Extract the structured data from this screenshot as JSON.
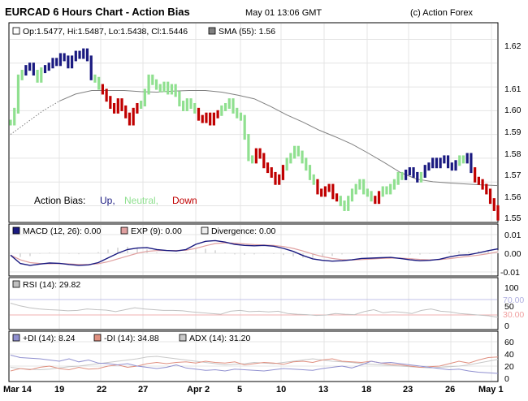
{
  "header": {
    "title": "EURCAD 6 Hours Chart - Action Bias",
    "datetime": "May 01 13:06 GMT",
    "copyright": "(c) Action Forex"
  },
  "colors": {
    "up": "#1a1a80",
    "neutral": "#90e090",
    "down": "#c00000",
    "sma": "#808080",
    "macd": "#1a1a80",
    "exp": "#e0a0a0",
    "divergence": "#dddddd",
    "rsi": "#c0c0c0",
    "rsi_ref": "#c0c0e8",
    "plus_di": "#9090d0",
    "minus_di": "#e09080",
    "adx": "#c8c8c8",
    "grid": "#e4e4e4",
    "frame": "#000000"
  },
  "x_axis": {
    "labels": [
      "Mar 14",
      "19",
      "22",
      "27",
      "Apr 2",
      "5",
      "10",
      "13",
      "18",
      "23",
      "26",
      "May 1"
    ]
  },
  "price_panel": {
    "legend_ohlc": "Op:1.5477, Hi:1.5487, Lo:1.5438, Cl:1.5446",
    "legend_sma": "SMA (55): 1.56",
    "bias_label": "Action Bias:",
    "bias_up": "Up,",
    "bias_neutral": "Neutral,",
    "bias_down": "Down",
    "y_ticks": [
      "1.62",
      "1.61",
      "1.60",
      "1.59",
      "1.58",
      "1.57",
      "1.56",
      "1.55"
    ]
  },
  "macd_panel": {
    "legend_macd": "MACD (12, 26): 0.00",
    "legend_exp": "EXP (9): 0.00",
    "legend_div": "Divergence: 0.00",
    "y_ticks": [
      "0.01",
      "0.00",
      "-0.01"
    ]
  },
  "rsi_panel": {
    "legend": "RSI (14): 29.82",
    "y_ticks": [
      "100",
      "50",
      "0"
    ],
    "ref_high": "70.00",
    "ref_low": "30.00"
  },
  "dmi_panel": {
    "legend_plus": "+DI (14): 8.24",
    "legend_minus": "-DI (14): 34.88",
    "legend_adx": "ADX (14): 31.20",
    "y_ticks": [
      "60",
      "40",
      "20",
      "0"
    ]
  },
  "chart_data": {
    "type": "ohlc",
    "title": "EURCAD 6 Hours Chart - Action Bias",
    "x_labels": [
      "Mar 14",
      "19",
      "22",
      "27",
      "Apr 2",
      "5",
      "10",
      "13",
      "18",
      "23",
      "26",
      "May 1"
    ],
    "price_ylim": [
      1.543,
      1.627
    ],
    "bias_order": [
      "neutral",
      "neutral",
      "neutral",
      "neutral",
      "up",
      "up",
      "up",
      "neutral",
      "neutral",
      "up",
      "up",
      "up",
      "up",
      "up",
      "up",
      "up",
      "up",
      "up",
      "up",
      "up",
      "up",
      "up",
      "neutral",
      "neutral",
      "down",
      "down",
      "down",
      "down",
      "down",
      "down",
      "down",
      "down",
      "down",
      "down",
      "neutral",
      "neutral",
      "neutral",
      "neutral",
      "neutral",
      "neutral",
      "neutral",
      "neutral",
      "neutral",
      "neutral",
      "neutral",
      "neutral",
      "neutral",
      "neutral",
      "neutral",
      "down",
      "down",
      "down",
      "down",
      "down",
      "down",
      "neutral",
      "neutral",
      "neutral",
      "neutral",
      "neutral",
      "neutral",
      "neutral",
      "neutral",
      "neutral",
      "down",
      "down",
      "down",
      "down",
      "down",
      "down",
      "down",
      "down",
      "neutral",
      "neutral",
      "neutral",
      "neutral",
      "neutral",
      "neutral",
      "neutral",
      "neutral",
      "down",
      "down",
      "down",
      "down",
      "down",
      "down",
      "neutral",
      "neutral",
      "neutral",
      "neutral",
      "neutral",
      "neutral",
      "neutral",
      "neutral",
      "neutral",
      "down",
      "down",
      "neutral",
      "neutral",
      "neutral",
      "neutral",
      "neutral",
      "neutral",
      "up",
      "up",
      "up",
      "up",
      "neutral",
      "up",
      "up",
      "up",
      "up",
      "up",
      "up",
      "up",
      "up",
      "up",
      "neutral",
      "neutral",
      "up",
      "up",
      "down",
      "down",
      "down",
      "down",
      "down",
      "down",
      "down",
      "down"
    ],
    "close_series": [
      1.585,
      1.59,
      1.604,
      1.606,
      1.608,
      1.609,
      1.606,
      1.603,
      1.607,
      1.608,
      1.609,
      1.611,
      1.61,
      1.613,
      1.612,
      1.609,
      1.612,
      1.614,
      1.613,
      1.615,
      1.612,
      1.604,
      1.603,
      1.6,
      1.598,
      1.595,
      1.592,
      1.59,
      1.594,
      1.591,
      1.588,
      1.585,
      1.59,
      1.592,
      1.593,
      1.598,
      1.604,
      1.602,
      1.6,
      1.599,
      1.601,
      1.598,
      1.6,
      1.597,
      1.593,
      1.591,
      1.594,
      1.592,
      1.59,
      1.587,
      1.586,
      1.588,
      1.585,
      1.588,
      1.589,
      1.591,
      1.592,
      1.594,
      1.59,
      1.588,
      1.587,
      1.579,
      1.57,
      1.569,
      1.573,
      1.571,
      1.567,
      1.565,
      1.563,
      1.56,
      1.562,
      1.566,
      1.569,
      1.571,
      1.574,
      1.572,
      1.569,
      1.566,
      1.562,
      1.56,
      1.556,
      1.555,
      1.557,
      1.558,
      1.554,
      1.553,
      1.551,
      1.549,
      1.553,
      1.556,
      1.558,
      1.56,
      1.556,
      1.555,
      1.553,
      1.552,
      1.555,
      1.557,
      1.556,
      1.558,
      1.56,
      1.563,
      1.562,
      1.564,
      1.565,
      1.563,
      1.561,
      1.563,
      1.566,
      1.567,
      1.569,
      1.567,
      1.569,
      1.57,
      1.567,
      1.566,
      1.568,
      1.57,
      1.569,
      1.571,
      1.565,
      1.561,
      1.56,
      1.558,
      1.556,
      1.552,
      1.549,
      1.545
    ],
    "sma_series": [
      1.58,
      1.585,
      1.59,
      1.594,
      1.597,
      1.5985,
      1.5985,
      1.5985,
      1.598,
      1.5978,
      1.5982,
      1.5985,
      1.5985,
      1.5978,
      1.5965,
      1.595,
      1.5918,
      1.5882,
      1.5852,
      1.5818,
      1.579,
      1.576,
      1.5722,
      1.5682,
      1.564,
      1.5612,
      1.5601,
      1.5596,
      1.5592,
      1.5588,
      1.5585
    ],
    "macd": [
      -0.001,
      -0.0055,
      -0.0065,
      -0.0058,
      -0.0052,
      -0.0054,
      -0.006,
      -0.0065,
      -0.0062,
      -0.005,
      -0.0025,
      0.0,
      0.002,
      0.0028,
      0.003,
      0.002,
      0.0015,
      0.0012,
      0.002,
      0.0048,
      0.0064,
      0.0068,
      0.006,
      0.0048,
      0.0042,
      0.004,
      0.0042,
      0.0038,
      0.0026,
      0.001,
      -0.0012,
      -0.003,
      -0.0038,
      -0.0042,
      -0.004,
      -0.0035,
      -0.0028,
      -0.0026,
      -0.0024,
      -0.0022,
      -0.0028,
      -0.0035,
      -0.004,
      -0.0038,
      -0.0032,
      -0.002,
      -0.001,
      -0.0008,
      0.0002,
      0.0014,
      0.0024
    ],
    "exp": [
      -0.001,
      -0.0035,
      -0.005,
      -0.0055,
      -0.0056,
      -0.0055,
      -0.0057,
      -0.006,
      -0.006,
      -0.0056,
      -0.0045,
      -0.003,
      -0.0015,
      0.0,
      0.001,
      0.0015,
      0.0015,
      0.0015,
      0.0016,
      0.0026,
      0.004,
      0.0052,
      0.0056,
      0.0054,
      0.005,
      0.0046,
      0.0044,
      0.0042,
      0.0036,
      0.0026,
      0.0012,
      -0.0004,
      -0.0018,
      -0.0028,
      -0.0034,
      -0.0036,
      -0.0034,
      -0.0031,
      -0.0028,
      -0.0026,
      -0.0026,
      -0.0029,
      -0.0033,
      -0.0035,
      -0.0034,
      -0.0029,
      -0.0022,
      -0.0016,
      -0.001,
      -0.0002,
      0.0008
    ],
    "rsi": [
      67,
      60,
      55,
      52,
      50,
      49,
      47,
      48,
      52,
      50,
      49,
      45,
      50,
      55,
      52,
      50,
      48,
      48,
      47,
      44,
      42,
      40,
      38,
      46,
      48,
      45,
      46,
      44,
      46,
      40,
      38,
      37,
      35,
      36,
      40,
      38,
      37,
      45,
      50,
      42,
      45,
      43,
      40,
      48,
      52,
      46,
      44,
      40,
      38,
      36,
      34,
      30
    ],
    "plus_di": [
      38,
      34,
      33,
      32,
      30,
      28,
      32,
      27,
      30,
      25,
      24,
      22,
      24,
      20,
      18,
      16,
      18,
      22,
      17,
      15,
      13,
      14,
      12,
      15,
      14,
      13,
      12,
      14,
      16,
      15,
      14,
      13,
      16,
      18,
      20,
      17,
      22,
      28,
      25,
      26,
      24,
      22,
      20,
      18,
      16,
      14,
      15,
      12,
      10,
      9,
      8
    ],
    "minus_di": [
      12,
      16,
      14,
      18,
      20,
      16,
      14,
      18,
      15,
      16,
      20,
      22,
      18,
      20,
      24,
      26,
      24,
      26,
      27,
      25,
      28,
      26,
      25,
      27,
      22,
      24,
      26,
      25,
      23,
      27,
      28,
      26,
      30,
      32,
      28,
      27,
      26,
      28,
      25,
      23,
      22,
      20,
      18,
      19,
      20,
      24,
      28,
      25,
      30,
      34,
      35
    ],
    "adx": [
      18,
      16,
      15,
      14,
      15,
      17,
      19,
      20,
      22,
      24,
      26,
      28,
      30,
      32,
      35,
      36,
      34,
      32,
      30,
      28,
      26,
      24,
      22,
      23,
      24,
      26,
      25,
      24,
      26,
      28,
      30,
      32,
      30,
      28,
      27,
      26,
      24,
      23,
      22,
      21,
      20,
      19,
      18,
      17,
      18,
      19,
      20,
      22,
      25,
      28,
      31
    ]
  }
}
